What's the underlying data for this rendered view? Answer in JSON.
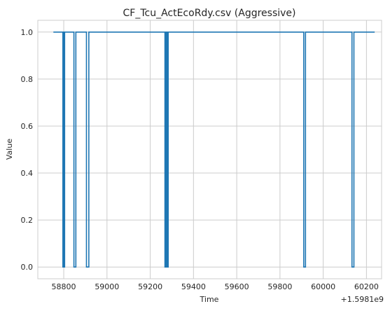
{
  "chart_data": {
    "type": "line",
    "title": "CF_Tcu_ActEcoRdy.csv (Aggressive)",
    "xlabel": "Time",
    "ylabel": "Value",
    "x_offset_label": "+1.5981e9",
    "xlim": [
      58680,
      60270
    ],
    "ylim": [
      -0.05,
      1.05
    ],
    "x_ticks": [
      58800,
      59000,
      59200,
      59400,
      59600,
      59800,
      60000,
      60200
    ],
    "y_ticks": [
      0.0,
      0.2,
      0.4,
      0.6,
      0.8,
      1.0
    ],
    "y_tick_labels": [
      "0.0",
      "0.2",
      "0.4",
      "0.6",
      "0.8",
      "1.0"
    ],
    "grid": true,
    "color": "#1f77b4",
    "series": [
      {
        "x": [
          58752,
          58796,
          58796,
          58798,
          58798,
          58801,
          58801,
          58804,
          58804,
          58847,
          58847,
          58856,
          58856,
          58905,
          58905,
          58916,
          58916,
          59268,
          59268,
          59271,
          59271,
          59273,
          59273,
          59276,
          59276,
          59279,
          59279,
          59283,
          59283,
          59910,
          59910,
          59918,
          59918,
          60133,
          60133,
          60142,
          60142,
          60238
        ],
        "y": [
          1,
          1,
          0,
          0,
          1,
          1,
          0,
          0,
          1,
          1,
          0,
          0,
          1,
          1,
          0,
          0,
          1,
          1,
          0,
          0,
          1,
          1,
          0,
          0,
          1,
          1,
          0,
          0,
          1,
          1,
          0,
          0,
          1,
          1,
          0,
          0,
          1,
          1
        ]
      }
    ]
  }
}
